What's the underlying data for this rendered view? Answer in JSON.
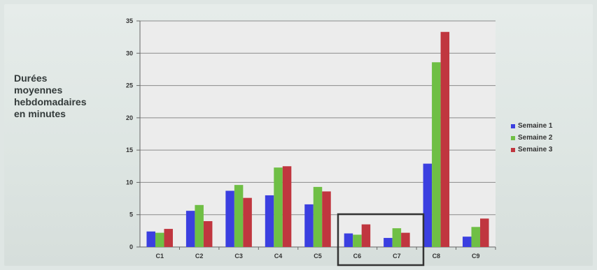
{
  "chart_data": {
    "type": "bar",
    "ylabel": "Durées\nmoyennes\nhebdomadaires\nen minutes",
    "xlabel": "",
    "categories": [
      "C1",
      "C2",
      "C3",
      "C4",
      "C5",
      "C6",
      "C7",
      "C8",
      "C9"
    ],
    "series": [
      {
        "name": "Semaine 1",
        "color": "#3b3fe0",
        "values": [
          2.4,
          5.6,
          8.7,
          8.0,
          6.6,
          2.1,
          1.4,
          12.9,
          1.6
        ]
      },
      {
        "name": "Semaine 2",
        "color": "#6fbf45",
        "values": [
          2.2,
          6.5,
          9.6,
          12.3,
          9.3,
          1.9,
          2.9,
          28.6,
          3.1
        ]
      },
      {
        "name": "Semaine 3",
        "color": "#c0363f",
        "values": [
          2.8,
          4.0,
          7.6,
          12.5,
          8.6,
          3.5,
          2.2,
          33.3,
          4.4
        ]
      }
    ],
    "ylim": [
      0,
      35
    ],
    "yticks": [
      0,
      5,
      10,
      15,
      20,
      25,
      30,
      35
    ],
    "grid": true,
    "legend_position": "right",
    "highlighted_categories": [
      "C6",
      "C7"
    ]
  }
}
